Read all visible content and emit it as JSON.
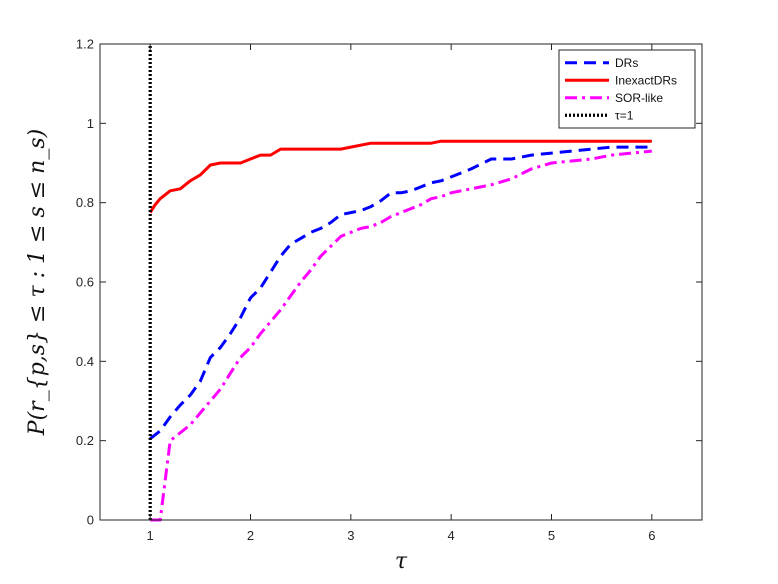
{
  "chart_data": {
    "type": "line",
    "title": "",
    "xlabel": "τ",
    "ylabel": "P(r_{p,s} ≤ τ : 1 ≤ s ≤ n_s)",
    "xlim": [
      0.5,
      6.5
    ],
    "ylim": [
      0,
      1.2
    ],
    "xticks": [
      1,
      2,
      3,
      4,
      5,
      6
    ],
    "yticks": [
      0,
      0.2,
      0.4,
      0.6,
      0.8,
      1,
      1.2
    ],
    "xtick_labels": [
      "1",
      "2",
      "3",
      "4",
      "5",
      "6"
    ],
    "ytick_labels": [
      "0",
      "0.2",
      "0.4",
      "0.6",
      "0.8",
      "1",
      "1.2"
    ],
    "grid": false,
    "legend_position": "top-right",
    "series": [
      {
        "name": "DRs",
        "color": "#0000ff",
        "style": "dashed",
        "points": [
          [
            1.0,
            0.205
          ],
          [
            1.1,
            0.225
          ],
          [
            1.2,
            0.26
          ],
          [
            1.3,
            0.29
          ],
          [
            1.4,
            0.315
          ],
          [
            1.5,
            0.35
          ],
          [
            1.6,
            0.41
          ],
          [
            1.7,
            0.435
          ],
          [
            1.8,
            0.47
          ],
          [
            1.9,
            0.51
          ],
          [
            2.0,
            0.56
          ],
          [
            2.1,
            0.585
          ],
          [
            2.2,
            0.625
          ],
          [
            2.3,
            0.665
          ],
          [
            2.4,
            0.695
          ],
          [
            2.5,
            0.71
          ],
          [
            2.6,
            0.725
          ],
          [
            2.7,
            0.735
          ],
          [
            2.8,
            0.75
          ],
          [
            2.9,
            0.77
          ],
          [
            3.0,
            0.775
          ],
          [
            3.1,
            0.78
          ],
          [
            3.2,
            0.79
          ],
          [
            3.3,
            0.805
          ],
          [
            3.4,
            0.825
          ],
          [
            3.5,
            0.825
          ],
          [
            3.6,
            0.83
          ],
          [
            3.7,
            0.84
          ],
          [
            3.8,
            0.85
          ],
          [
            3.9,
            0.855
          ],
          [
            4.0,
            0.865
          ],
          [
            4.2,
            0.885
          ],
          [
            4.4,
            0.91
          ],
          [
            4.6,
            0.91
          ],
          [
            4.8,
            0.92
          ],
          [
            5.0,
            0.925
          ],
          [
            5.2,
            0.93
          ],
          [
            5.4,
            0.935
          ],
          [
            5.6,
            0.94
          ],
          [
            5.8,
            0.94
          ],
          [
            6.0,
            0.94
          ]
        ]
      },
      {
        "name": "InexactDRs",
        "color": "#ff0000",
        "style": "solid",
        "points": [
          [
            1.0,
            0.775
          ],
          [
            1.05,
            0.795
          ],
          [
            1.1,
            0.81
          ],
          [
            1.2,
            0.83
          ],
          [
            1.3,
            0.835
          ],
          [
            1.4,
            0.855
          ],
          [
            1.5,
            0.87
          ],
          [
            1.6,
            0.895
          ],
          [
            1.7,
            0.9
          ],
          [
            1.8,
            0.9
          ],
          [
            1.9,
            0.9
          ],
          [
            2.0,
            0.91
          ],
          [
            2.1,
            0.92
          ],
          [
            2.2,
            0.92
          ],
          [
            2.3,
            0.935
          ],
          [
            2.5,
            0.935
          ],
          [
            2.9,
            0.935
          ],
          [
            3.0,
            0.94
          ],
          [
            3.2,
            0.95
          ],
          [
            3.5,
            0.95
          ],
          [
            3.8,
            0.95
          ],
          [
            3.9,
            0.955
          ],
          [
            4.5,
            0.955
          ],
          [
            5.0,
            0.955
          ],
          [
            6.0,
            0.955
          ]
        ]
      },
      {
        "name": "SOR-like",
        "color": "#ff00ff",
        "style": "dashdot",
        "points": [
          [
            1.0,
            0.0
          ],
          [
            1.1,
            0.0
          ],
          [
            1.15,
            0.1
          ],
          [
            1.2,
            0.2
          ],
          [
            1.3,
            0.22
          ],
          [
            1.4,
            0.24
          ],
          [
            1.5,
            0.27
          ],
          [
            1.6,
            0.3
          ],
          [
            1.7,
            0.33
          ],
          [
            1.8,
            0.37
          ],
          [
            1.9,
            0.41
          ],
          [
            2.0,
            0.435
          ],
          [
            2.1,
            0.47
          ],
          [
            2.2,
            0.5
          ],
          [
            2.3,
            0.53
          ],
          [
            2.4,
            0.565
          ],
          [
            2.5,
            0.6
          ],
          [
            2.6,
            0.63
          ],
          [
            2.7,
            0.665
          ],
          [
            2.8,
            0.69
          ],
          [
            2.9,
            0.715
          ],
          [
            3.0,
            0.725
          ],
          [
            3.1,
            0.735
          ],
          [
            3.2,
            0.74
          ],
          [
            3.3,
            0.75
          ],
          [
            3.4,
            0.765
          ],
          [
            3.5,
            0.775
          ],
          [
            3.6,
            0.785
          ],
          [
            3.7,
            0.795
          ],
          [
            3.8,
            0.81
          ],
          [
            3.9,
            0.815
          ],
          [
            4.0,
            0.825
          ],
          [
            4.2,
            0.835
          ],
          [
            4.4,
            0.845
          ],
          [
            4.6,
            0.86
          ],
          [
            4.8,
            0.885
          ],
          [
            5.0,
            0.9
          ],
          [
            5.2,
            0.905
          ],
          [
            5.4,
            0.91
          ],
          [
            5.6,
            0.92
          ],
          [
            5.8,
            0.925
          ],
          [
            6.0,
            0.93
          ]
        ]
      },
      {
        "name": "τ=1",
        "color": "#000000",
        "style": "dotted",
        "points": [
          [
            1.0,
            0.0
          ],
          [
            1.0,
            1.2
          ]
        ]
      }
    ]
  }
}
